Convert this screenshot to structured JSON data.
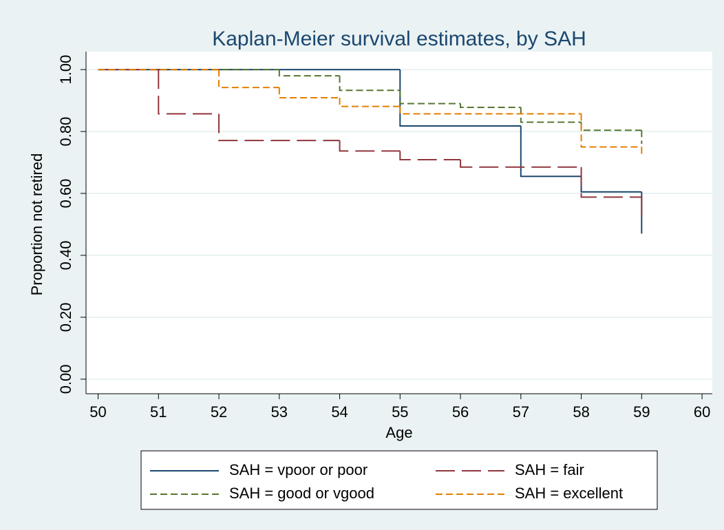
{
  "chart_data": {
    "type": "step",
    "title": "Kaplan-Meier survival estimates, by SAH",
    "x_label": "Age",
    "y_label": "Proportion not retired",
    "xlim": [
      49.8,
      60.17
    ],
    "ylim": [
      -0.047,
      1.058
    ],
    "xticks": [
      50,
      51,
      52,
      53,
      54,
      55,
      56,
      57,
      58,
      59,
      60
    ],
    "yticks": [
      {
        "value": 0,
        "label": "0.00"
      },
      {
        "value": 0.2,
        "label": "0.20"
      },
      {
        "value": 0.4,
        "label": "0.40"
      },
      {
        "value": 0.6,
        "label": "0.60"
      },
      {
        "value": 0.8,
        "label": "0.80"
      },
      {
        "value": 1,
        "label": "1.00"
      }
    ],
    "grid": true,
    "legend_position": "bottom",
    "series": [
      {
        "name": "SAH = vpoor or poor",
        "color": "#1a476f",
        "dash": "none",
        "x": [
          50,
          55,
          57,
          58,
          59
        ],
        "values": [
          1.0,
          0.818,
          0.655,
          0.605,
          0.47
        ]
      },
      {
        "name": "SAH = fair",
        "color": "#90353b",
        "dash": "28 10",
        "x": [
          50,
          51,
          52,
          54,
          55,
          56,
          58,
          59
        ],
        "values": [
          1.0,
          0.857,
          0.771,
          0.737,
          0.709,
          0.685,
          0.588,
          0.52
        ]
      },
      {
        "name": "SAH = good or vgood",
        "color": "#55752f",
        "dash": "10 5",
        "x": [
          50,
          53,
          54,
          55,
          56,
          57,
          58,
          59
        ],
        "values": [
          1.0,
          0.98,
          0.933,
          0.89,
          0.878,
          0.83,
          0.804,
          0.76
        ]
      },
      {
        "name": "SAH = excellent",
        "color": "#e37e00",
        "dash": "10 5",
        "x": [
          50,
          52,
          53,
          54,
          55,
          58,
          59
        ],
        "values": [
          1.0,
          0.942,
          0.909,
          0.881,
          0.857,
          0.75,
          0.724
        ]
      }
    ]
  }
}
